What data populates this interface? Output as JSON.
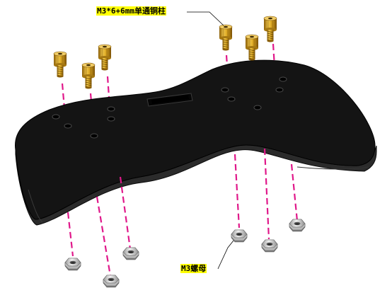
{
  "labels": {
    "standoff": "M3*6+6mm单通铜柱",
    "nut": "M3螺母"
  },
  "colors": {
    "plate": "#141414",
    "plate_edge": "#3a3a3a",
    "brass": "#d9a520",
    "brass_dark": "#9a6e10",
    "nut": "#d4d4d4",
    "guide_line": "#e0188a",
    "label_highlight": "#ffff00"
  }
}
